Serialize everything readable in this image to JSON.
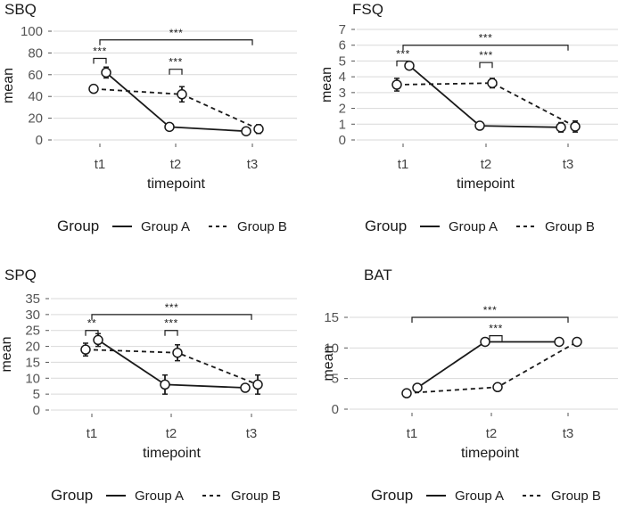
{
  "chart_data": [
    {
      "type": "line",
      "title": "SBQ",
      "xlabel": "timepoint",
      "ylabel": "mean",
      "categories": [
        "t1",
        "t2",
        "t3"
      ],
      "ylim": [
        0,
        100
      ],
      "yticks": [
        0,
        20,
        40,
        60,
        80,
        100
      ],
      "series": [
        {
          "name": "Group A",
          "values": [
            62,
            12,
            8
          ],
          "errors": [
            5,
            2,
            2
          ]
        },
        {
          "name": "Group B",
          "values": [
            47,
            42,
            10
          ],
          "errors": [
            3,
            7,
            4
          ]
        }
      ],
      "significance": [
        {
          "from": 0,
          "to": 0,
          "label": "***",
          "y": 75
        },
        {
          "from": 1,
          "to": 1,
          "label": "***",
          "y": 65
        },
        {
          "from": 0,
          "to": 2,
          "label": "***",
          "y": 92
        }
      ]
    },
    {
      "type": "line",
      "title": "FSQ",
      "xlabel": "timepoint",
      "ylabel": "mean",
      "categories": [
        "t1",
        "t2",
        "t3"
      ],
      "ylim": [
        0,
        7
      ],
      "yticks": [
        0,
        1,
        2,
        3,
        4,
        5,
        6,
        7
      ],
      "series": [
        {
          "name": "Group A",
          "values": [
            4.7,
            0.9,
            0.8
          ],
          "errors": [
            0.2,
            0.1,
            0.3
          ]
        },
        {
          "name": "Group B",
          "values": [
            3.5,
            3.6,
            0.85
          ],
          "errors": [
            0.4,
            0.3,
            0.35
          ]
        }
      ],
      "significance": [
        {
          "from": 0,
          "to": 0,
          "label": "***",
          "y": 5.0
        },
        {
          "from": 1,
          "to": 1,
          "label": "***",
          "y": 4.9
        },
        {
          "from": 0,
          "to": 2,
          "label": "***",
          "y": 6.0
        }
      ]
    },
    {
      "type": "line",
      "title": "SPQ",
      "xlabel": "timepoint",
      "ylabel": "mean",
      "categories": [
        "t1",
        "t2",
        "t3"
      ],
      "ylim": [
        0,
        35
      ],
      "yticks": [
        0,
        5,
        10,
        15,
        20,
        25,
        30,
        35
      ],
      "series": [
        {
          "name": "Group A",
          "values": [
            22,
            8,
            7
          ],
          "errors": [
            2,
            3,
            1
          ]
        },
        {
          "name": "Group B",
          "values": [
            19,
            18,
            8
          ],
          "errors": [
            2,
            2.5,
            3
          ]
        }
      ],
      "significance": [
        {
          "from": 0,
          "to": 0,
          "label": "**",
          "y": 25
        },
        {
          "from": 1,
          "to": 1,
          "label": "***",
          "y": 25
        },
        {
          "from": 0,
          "to": 2,
          "label": "***",
          "y": 30
        }
      ]
    },
    {
      "type": "line",
      "title": "BAT",
      "xlabel": "timepoint",
      "ylabel": "mean",
      "categories": [
        "t1",
        "t2",
        "t3"
      ],
      "ylim": [
        0,
        15
      ],
      "yticks": [
        0,
        5,
        10,
        15
      ],
      "series": [
        {
          "name": "Group A",
          "values": [
            3.5,
            11,
            11
          ],
          "errors": [
            0.5,
            0.4,
            0.3
          ]
        },
        {
          "name": "Group B",
          "values": [
            2.6,
            3.6,
            11
          ],
          "errors": [
            0.3,
            0.4,
            0.3
          ]
        }
      ],
      "significance": [
        {
          "from": 1,
          "to": 1,
          "label": "***",
          "y": 12
        },
        {
          "from": 0,
          "to": 2,
          "label": "***",
          "y": 15
        }
      ]
    }
  ],
  "legend": {
    "title": "Group",
    "entries": [
      {
        "name": "Group A",
        "style": "solid"
      },
      {
        "name": "Group B",
        "style": "dashed"
      }
    ]
  },
  "colors": {
    "line": "#1a1a1a",
    "grid": "#d9d9d9",
    "point_fill": "#ffffff"
  }
}
